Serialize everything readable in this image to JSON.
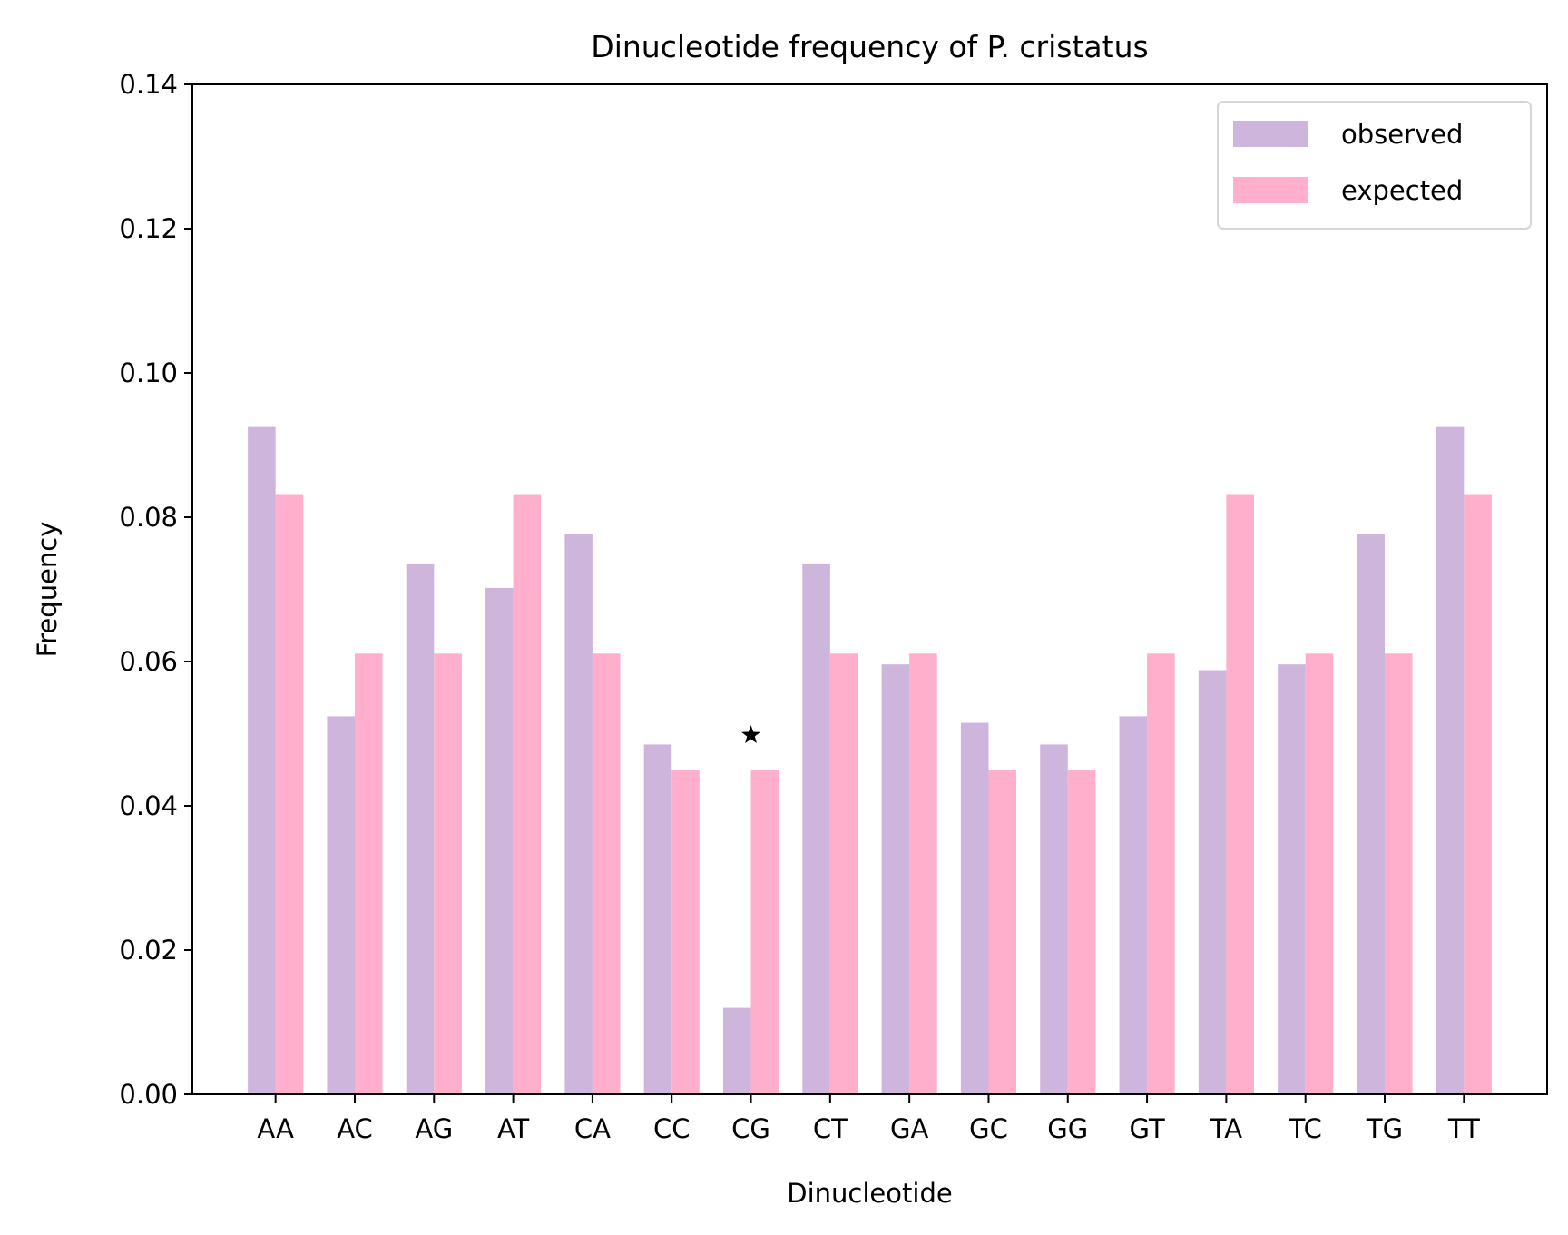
{
  "chart_data": {
    "type": "bar",
    "title": "Dinucleotide frequency of P. cristatus",
    "xlabel": "Dinucleotide",
    "ylabel": "Frequency",
    "ylim": [
      0,
      0.14
    ],
    "yticks": [
      "0.00",
      "0.02",
      "0.04",
      "0.06",
      "0.08",
      "0.10",
      "0.12",
      "0.14"
    ],
    "categories": [
      "AA",
      "AC",
      "AG",
      "AT",
      "CA",
      "CC",
      "CG",
      "CT",
      "GA",
      "GC",
      "GG",
      "GT",
      "TA",
      "TC",
      "TG",
      "TT"
    ],
    "series": [
      {
        "name": "observed",
        "color": "#cdb5db",
        "values": [
          0.0925,
          0.0524,
          0.0736,
          0.0702,
          0.0777,
          0.0485,
          0.012,
          0.0736,
          0.0596,
          0.0515,
          0.0485,
          0.0524,
          0.0588,
          0.0596,
          0.0777,
          0.0925
        ]
      },
      {
        "name": "expected",
        "color": "#ffaecb",
        "values": [
          0.0832,
          0.0611,
          0.0611,
          0.0832,
          0.0611,
          0.0449,
          0.0449,
          0.0611,
          0.0611,
          0.0449,
          0.0449,
          0.0611,
          0.0832,
          0.0611,
          0.0611,
          0.0832
        ]
      }
    ],
    "annotations": [
      {
        "category": "CG",
        "value": 0.0498,
        "marker": "star"
      }
    ],
    "legend": "top-right",
    "grid": false
  }
}
